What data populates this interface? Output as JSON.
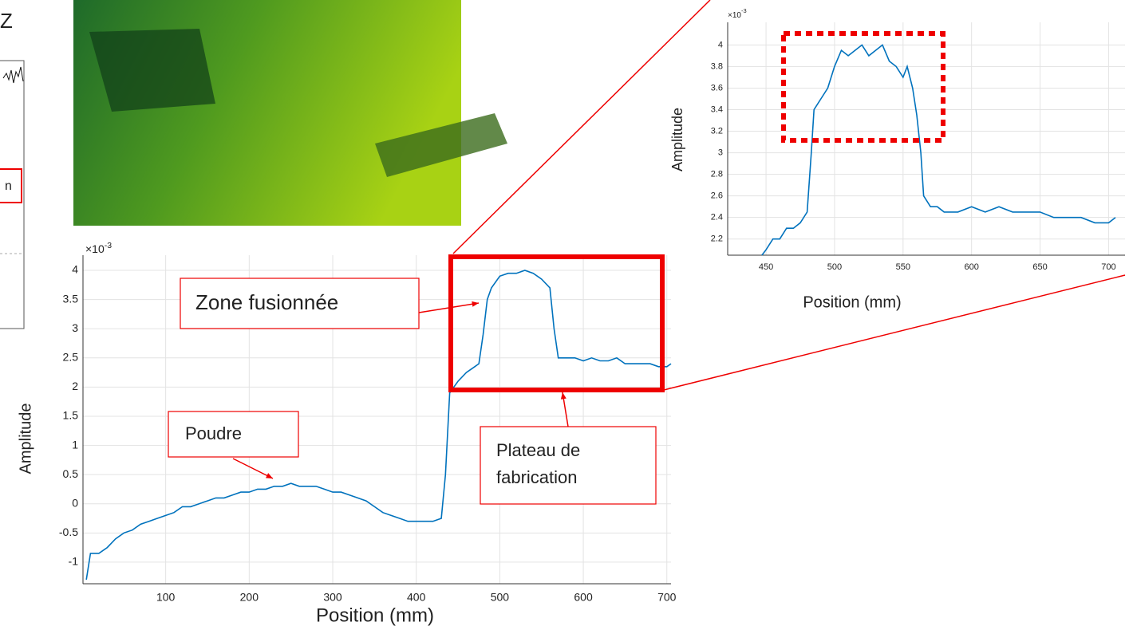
{
  "chart_data": [
    {
      "type": "line",
      "x": [
        5,
        10,
        20,
        30,
        40,
        50,
        60,
        70,
        80,
        90,
        100,
        110,
        120,
        130,
        140,
        150,
        160,
        170,
        180,
        190,
        200,
        210,
        220,
        230,
        240,
        250,
        260,
        270,
        280,
        290,
        300,
        310,
        320,
        330,
        340,
        350,
        360,
        370,
        380,
        390,
        400,
        410,
        420,
        430,
        435,
        440,
        450,
        460,
        470,
        475,
        480,
        485,
        490,
        500,
        510,
        520,
        530,
        540,
        550,
        560,
        565,
        570,
        580,
        590,
        600,
        610,
        620,
        630,
        640,
        650,
        660,
        670,
        680,
        690,
        700,
        705
      ],
      "values": [
        -1.3,
        -0.85,
        -0.85,
        -0.75,
        -0.6,
        -0.5,
        -0.45,
        -0.35,
        -0.3,
        -0.25,
        -0.2,
        -0.15,
        -0.05,
        -0.05,
        0,
        0.05,
        0.1,
        0.1,
        0.15,
        0.2,
        0.2,
        0.25,
        0.25,
        0.3,
        0.3,
        0.35,
        0.3,
        0.3,
        0.3,
        0.25,
        0.2,
        0.2,
        0.15,
        0.1,
        0.05,
        -0.05,
        -0.15,
        -0.2,
        -0.25,
        -0.3,
        -0.3,
        -0.3,
        -0.3,
        -0.25,
        0.5,
        1.9,
        2.1,
        2.25,
        2.35,
        2.4,
        2.9,
        3.5,
        3.7,
        3.9,
        3.95,
        3.95,
        4.0,
        3.95,
        3.85,
        3.7,
        3.0,
        2.5,
        2.5,
        2.5,
        2.45,
        2.5,
        2.45,
        2.45,
        2.5,
        2.4,
        2.4,
        2.4,
        2.4,
        2.35,
        2.35,
        2.4
      ],
      "color": "#0072bd",
      "xlim": [
        1,
        705
      ],
      "xticks": [
        100,
        200,
        300,
        400,
        500,
        600,
        700
      ],
      "ylim": [
        -1.37,
        4.26
      ],
      "yticks": [
        -1,
        -0.5,
        0,
        0.5,
        1,
        1.5,
        2,
        2.5,
        3,
        3.5,
        4
      ],
      "grid": true,
      "exponent": {
        "base": "×10",
        "power": "-3"
      },
      "xlabel": "Position (mm)",
      "ylabel": "Amplitude",
      "annotations": [
        {
          "lines": [
            "Zone fusionnée"
          ]
        },
        {
          "lines": [
            "Poudre"
          ]
        },
        {
          "lines": [
            "Plateau de",
            "fabrication"
          ]
        }
      ]
    },
    {
      "type": "line",
      "x": [
        447,
        450,
        455,
        460,
        465,
        470,
        475,
        480,
        483,
        485,
        490,
        495,
        500,
        505,
        510,
        515,
        520,
        525,
        530,
        535,
        540,
        545,
        550,
        553,
        557,
        560,
        563,
        565,
        570,
        575,
        580,
        590,
        600,
        610,
        620,
        630,
        640,
        650,
        660,
        670,
        680,
        690,
        700,
        705
      ],
      "values": [
        2.05,
        2.1,
        2.2,
        2.2,
        2.3,
        2.3,
        2.35,
        2.45,
        3.0,
        3.4,
        3.5,
        3.6,
        3.8,
        3.95,
        3.9,
        3.95,
        4.0,
        3.9,
        3.95,
        4.0,
        3.85,
        3.8,
        3.7,
        3.8,
        3.6,
        3.35,
        3.0,
        2.6,
        2.5,
        2.5,
        2.45,
        2.45,
        2.5,
        2.45,
        2.5,
        2.45,
        2.45,
        2.45,
        2.4,
        2.4,
        2.4,
        2.35,
        2.35,
        2.4
      ],
      "color": "#0072bd",
      "xlim": [
        422,
        712
      ],
      "xticks": [
        450,
        500,
        550,
        600,
        650,
        700
      ],
      "ylim": [
        2.05,
        4.21
      ],
      "yticks": [
        2.2,
        2.4,
        2.6,
        2.8,
        3,
        3.2,
        3.4,
        3.6,
        3.8,
        4
      ],
      "grid": true,
      "exponent": {
        "base": "×10",
        "power": "-3"
      },
      "xlabel": "Position (mm)",
      "ylabel": "Amplitude"
    }
  ],
  "fragment": {
    "title": "Z",
    "label": "n"
  }
}
